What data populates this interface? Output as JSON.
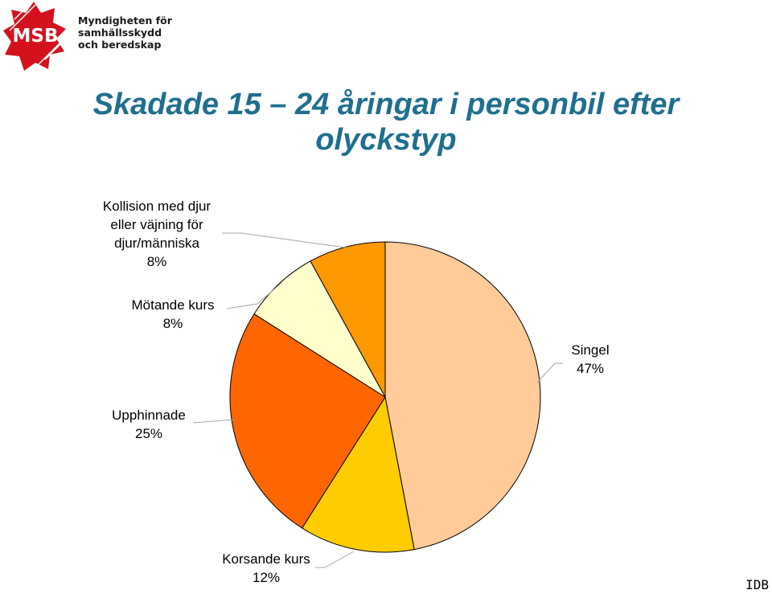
{
  "logo": {
    "abbrev": "MSB",
    "lines": [
      "Myndigheten för",
      "samhällsskydd",
      "och beredskap"
    ]
  },
  "title_lines": [
    "Skadade 15 – 24 åringar i personbil efter",
    "olyckstyp"
  ],
  "colors": {
    "title": "#1f6f8f",
    "logo_red": "#d4121d"
  },
  "chart_data": {
    "type": "pie",
    "title": "Skadade 15 – 24 åringar i personbil efter olyckstyp",
    "start": "12 o'clock",
    "direction": "clockwise",
    "slices": [
      {
        "label_lines": [
          "Singel"
        ],
        "value_text": "47%",
        "value": 47,
        "color": "#ffcc99"
      },
      {
        "label_lines": [
          "Korsande kurs"
        ],
        "value_text": "12%",
        "value": 12,
        "color": "#ffcc00"
      },
      {
        "label_lines": [
          "Upphinnade"
        ],
        "value_text": "25%",
        "value": 25,
        "color": "#ff6600"
      },
      {
        "label_lines": [
          "Mötande kurs"
        ],
        "value_text": "8%",
        "value": 8,
        "color": "#ffffcc"
      },
      {
        "label_lines": [
          "Kollision med djur",
          "eller väjning för",
          "djur/människa"
        ],
        "value_text": "8%",
        "value": 8,
        "color": "#ff9900"
      }
    ]
  },
  "footer": {
    "source": "IDB"
  }
}
